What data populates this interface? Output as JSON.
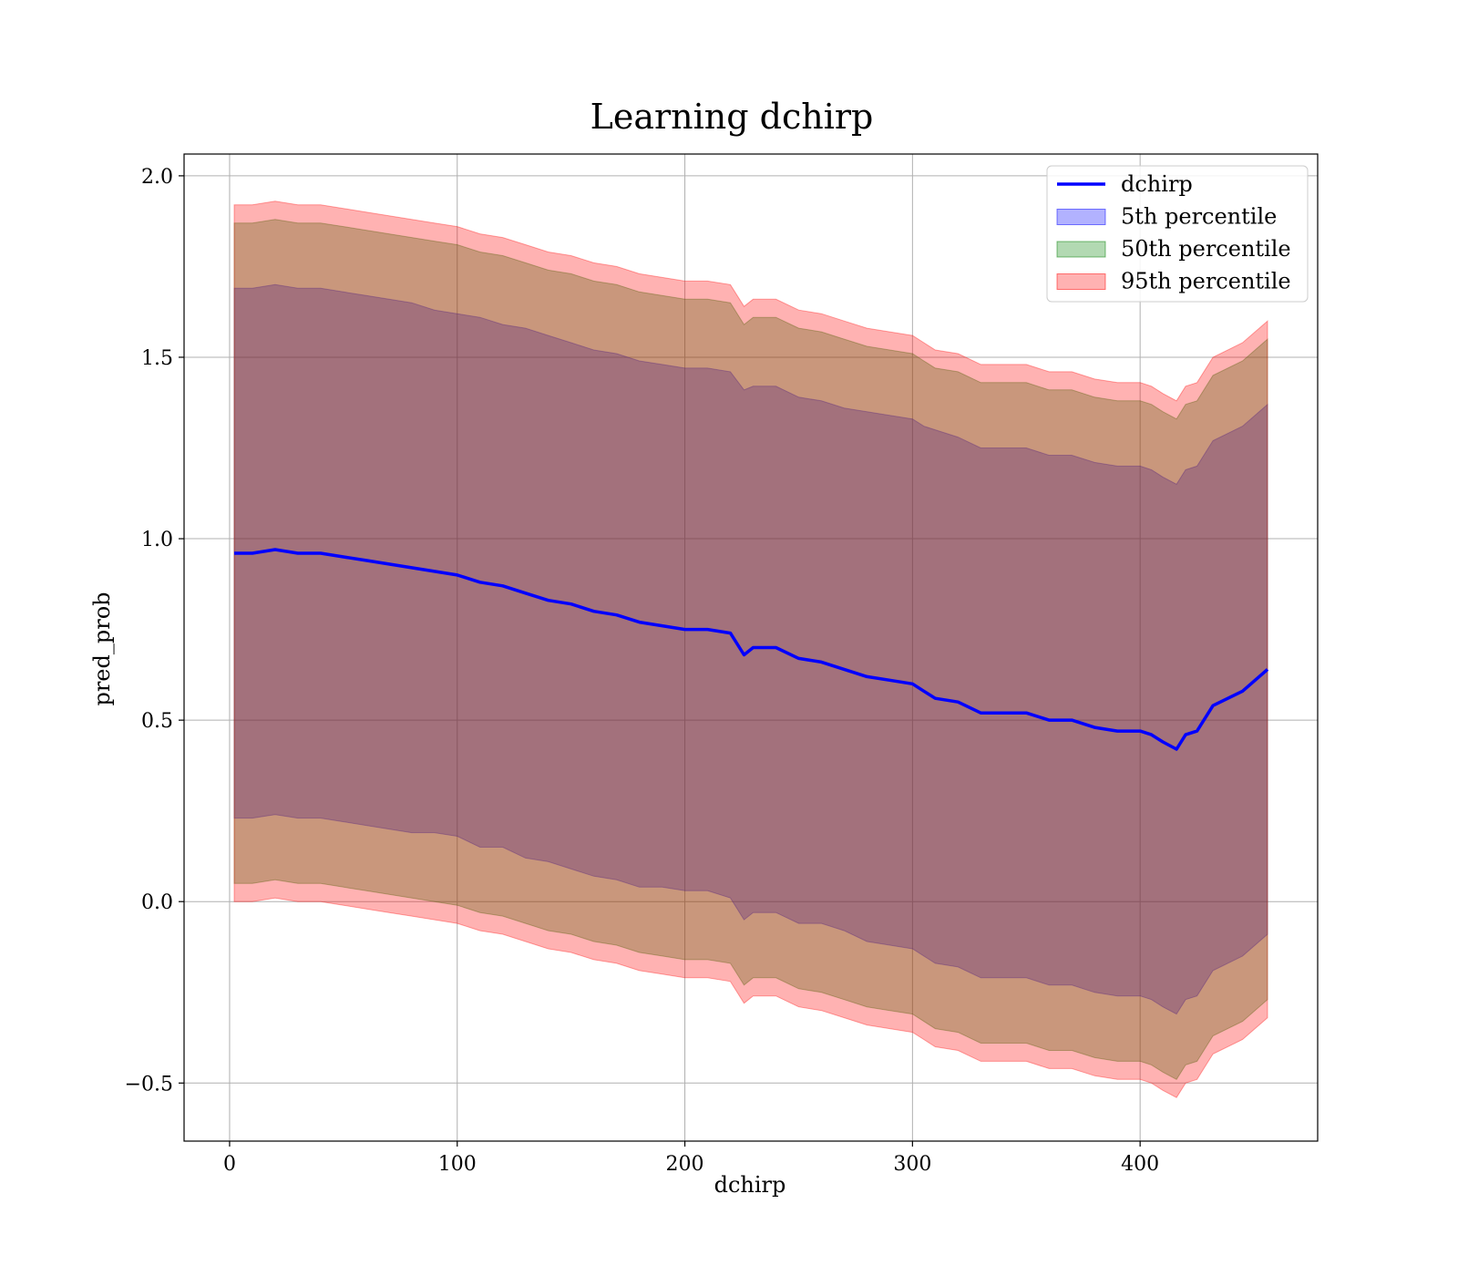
{
  "chart_data": {
    "type": "area",
    "title": "Learning dchirp",
    "xlabel": "dchirp",
    "ylabel": "pred_prob",
    "xlim": [
      -20,
      478
    ],
    "ylim": [
      -0.66,
      2.06
    ],
    "xticks": [
      0,
      100,
      200,
      300,
      400
    ],
    "xtick_labels": [
      "0",
      "100",
      "200",
      "300",
      "400"
    ],
    "yticks": [
      -0.5,
      0.0,
      0.5,
      1.0,
      1.5,
      2.0
    ],
    "ytick_labels": [
      "−0.5",
      "0.0",
      "0.5",
      "1.0",
      "1.5",
      "2.0"
    ],
    "grid": true,
    "legend_position": "top-right",
    "x": [
      2,
      10,
      20,
      30,
      40,
      50,
      60,
      70,
      80,
      90,
      100,
      110,
      120,
      130,
      140,
      150,
      160,
      170,
      180,
      190,
      200,
      210,
      220,
      226,
      230,
      240,
      250,
      260,
      270,
      280,
      290,
      300,
      305,
      310,
      320,
      330,
      340,
      350,
      360,
      370,
      380,
      390,
      400,
      405,
      410,
      416,
      420,
      425,
      432,
      445,
      456
    ],
    "series": [
      {
        "name": "dchirp",
        "color": "#0000ff",
        "kind": "line",
        "values": [
          0.96,
          0.96,
          0.97,
          0.96,
          0.96,
          0.95,
          0.94,
          0.93,
          0.92,
          0.91,
          0.9,
          0.88,
          0.87,
          0.85,
          0.83,
          0.82,
          0.8,
          0.79,
          0.77,
          0.76,
          0.75,
          0.75,
          0.74,
          0.68,
          0.7,
          0.7,
          0.67,
          0.66,
          0.64,
          0.62,
          0.61,
          0.6,
          0.58,
          0.56,
          0.55,
          0.52,
          0.52,
          0.52,
          0.5,
          0.5,
          0.48,
          0.47,
          0.47,
          0.46,
          0.44,
          0.42,
          0.46,
          0.47,
          0.54,
          0.58,
          0.64
        ]
      },
      {
        "name": "5th percentile",
        "color": "#0000ff",
        "kind": "band",
        "alpha": 0.3,
        "upper": [
          1.69,
          1.69,
          1.7,
          1.69,
          1.69,
          1.68,
          1.67,
          1.66,
          1.65,
          1.63,
          1.62,
          1.61,
          1.59,
          1.58,
          1.56,
          1.54,
          1.52,
          1.51,
          1.49,
          1.48,
          1.47,
          1.47,
          1.46,
          1.41,
          1.42,
          1.42,
          1.39,
          1.38,
          1.36,
          1.35,
          1.34,
          1.33,
          1.31,
          1.3,
          1.28,
          1.25,
          1.25,
          1.25,
          1.23,
          1.23,
          1.21,
          1.2,
          1.2,
          1.19,
          1.17,
          1.15,
          1.19,
          1.2,
          1.27,
          1.31,
          1.37
        ],
        "lower": [
          0.23,
          0.23,
          0.24,
          0.23,
          0.23,
          0.22,
          0.21,
          0.2,
          0.19,
          0.19,
          0.18,
          0.15,
          0.15,
          0.12,
          0.11,
          0.09,
          0.07,
          0.06,
          0.04,
          0.04,
          0.03,
          0.03,
          0.01,
          -0.05,
          -0.03,
          -0.03,
          -0.06,
          -0.06,
          -0.08,
          -0.11,
          -0.12,
          -0.13,
          -0.15,
          -0.17,
          -0.18,
          -0.21,
          -0.21,
          -0.21,
          -0.23,
          -0.23,
          -0.25,
          -0.26,
          -0.26,
          -0.27,
          -0.29,
          -0.31,
          -0.27,
          -0.26,
          -0.19,
          -0.15,
          -0.09
        ]
      },
      {
        "name": "50th percentile",
        "color": "#008000",
        "kind": "band",
        "alpha": 0.3,
        "upper": [
          1.87,
          1.87,
          1.88,
          1.87,
          1.87,
          1.86,
          1.85,
          1.84,
          1.83,
          1.82,
          1.81,
          1.79,
          1.78,
          1.76,
          1.74,
          1.73,
          1.71,
          1.7,
          1.68,
          1.67,
          1.66,
          1.66,
          1.65,
          1.59,
          1.61,
          1.61,
          1.58,
          1.57,
          1.55,
          1.53,
          1.52,
          1.51,
          1.49,
          1.47,
          1.46,
          1.43,
          1.43,
          1.43,
          1.41,
          1.41,
          1.39,
          1.38,
          1.38,
          1.37,
          1.35,
          1.33,
          1.37,
          1.38,
          1.45,
          1.49,
          1.55
        ],
        "lower": [
          0.05,
          0.05,
          0.06,
          0.05,
          0.05,
          0.04,
          0.03,
          0.02,
          0.01,
          0.0,
          -0.01,
          -0.03,
          -0.04,
          -0.06,
          -0.08,
          -0.09,
          -0.11,
          -0.12,
          -0.14,
          -0.15,
          -0.16,
          -0.16,
          -0.17,
          -0.23,
          -0.21,
          -0.21,
          -0.24,
          -0.25,
          -0.27,
          -0.29,
          -0.3,
          -0.31,
          -0.33,
          -0.35,
          -0.36,
          -0.39,
          -0.39,
          -0.39,
          -0.41,
          -0.41,
          -0.43,
          -0.44,
          -0.44,
          -0.45,
          -0.47,
          -0.49,
          -0.45,
          -0.44,
          -0.37,
          -0.33,
          -0.27
        ]
      },
      {
        "name": "95th percentile",
        "color": "#ff0000",
        "kind": "band",
        "alpha": 0.3,
        "upper": [
          1.92,
          1.92,
          1.93,
          1.92,
          1.92,
          1.91,
          1.9,
          1.89,
          1.88,
          1.87,
          1.86,
          1.84,
          1.83,
          1.81,
          1.79,
          1.78,
          1.76,
          1.75,
          1.73,
          1.72,
          1.71,
          1.71,
          1.7,
          1.64,
          1.66,
          1.66,
          1.63,
          1.62,
          1.6,
          1.58,
          1.57,
          1.56,
          1.54,
          1.52,
          1.51,
          1.48,
          1.48,
          1.48,
          1.46,
          1.46,
          1.44,
          1.43,
          1.43,
          1.42,
          1.4,
          1.38,
          1.42,
          1.43,
          1.5,
          1.54,
          1.6
        ],
        "lower": [
          0.0,
          0.0,
          0.01,
          0.0,
          0.0,
          -0.01,
          -0.02,
          -0.03,
          -0.04,
          -0.05,
          -0.06,
          -0.08,
          -0.09,
          -0.11,
          -0.13,
          -0.14,
          -0.16,
          -0.17,
          -0.19,
          -0.2,
          -0.21,
          -0.21,
          -0.22,
          -0.28,
          -0.26,
          -0.26,
          -0.29,
          -0.3,
          -0.32,
          -0.34,
          -0.35,
          -0.36,
          -0.38,
          -0.4,
          -0.41,
          -0.44,
          -0.44,
          -0.44,
          -0.46,
          -0.46,
          -0.48,
          -0.49,
          -0.49,
          -0.5,
          -0.52,
          -0.54,
          -0.5,
          -0.49,
          -0.42,
          -0.38,
          -0.32
        ]
      }
    ]
  }
}
